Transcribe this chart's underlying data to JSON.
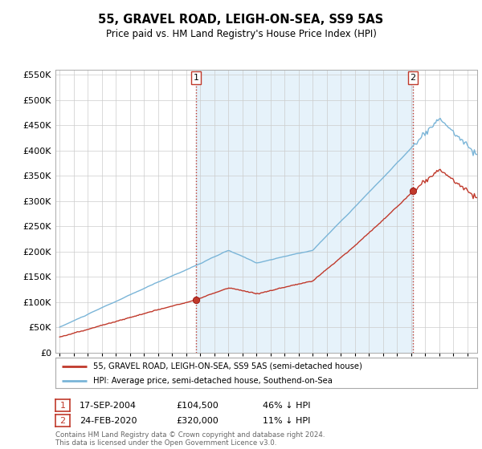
{
  "title": "55, GRAVEL ROAD, LEIGH-ON-SEA, SS9 5AS",
  "subtitle": "Price paid vs. HM Land Registry's House Price Index (HPI)",
  "ytick_values": [
    0,
    50000,
    100000,
    150000,
    200000,
    250000,
    300000,
    350000,
    400000,
    450000,
    500000,
    550000
  ],
  "ylim": [
    0,
    560000
  ],
  "x_start_year": 1995,
  "x_end_year": 2024,
  "hpi_color": "#7ab5d8",
  "hpi_fill_color": "#d6eaf8",
  "price_color": "#c0392b",
  "vline_color": "#c0392b",
  "grid_color": "#cccccc",
  "sale1_price": 104500,
  "sale1_date": "17-SEP-2004",
  "sale1_pct": "46% ↓ HPI",
  "sale2_price": 320000,
  "sale2_date": "24-FEB-2020",
  "sale2_pct": "11% ↓ HPI",
  "legend_line1": "55, GRAVEL ROAD, LEIGH-ON-SEA, SS9 5AS (semi-detached house)",
  "legend_line2": "HPI: Average price, semi-detached house, Southend-on-Sea",
  "footer": "Contains HM Land Registry data © Crown copyright and database right 2024.\nThis data is licensed under the Open Government Licence v3.0.",
  "background_color": "#ffffff"
}
